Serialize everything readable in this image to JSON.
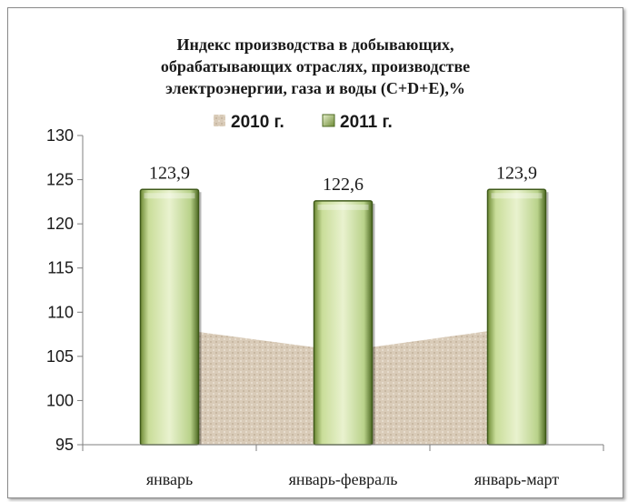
{
  "chart_data": {
    "type": "bar",
    "title_lines": [
      "Индекс производства в добывающих,",
      "обрабатывающих отраслях, производстве",
      "электроэнергии, газа и воды (C+D+E),%"
    ],
    "categories": [
      "январь",
      "январь-февраль",
      "январь-март"
    ],
    "series": [
      {
        "name": "2010 г.",
        "type": "area",
        "values": [
          108.2,
          105.6,
          108.3
        ]
      },
      {
        "name": "2011 г.",
        "type": "bar",
        "values": [
          123.9,
          122.6,
          123.9
        ]
      }
    ],
    "data_labels": [
      "123,9",
      "122,6",
      "123,9"
    ],
    "ylim": [
      95,
      130
    ],
    "yticks": [
      95,
      100,
      105,
      110,
      115,
      120,
      125,
      130
    ],
    "legend_position": "top",
    "grid": false,
    "colors": {
      "area_2010": "#d9cbb8",
      "bar_2011_light": "#e9f2cf",
      "bar_2011_mid": "#b9d28a",
      "bar_2011_dark": "#4f6b24"
    }
  }
}
